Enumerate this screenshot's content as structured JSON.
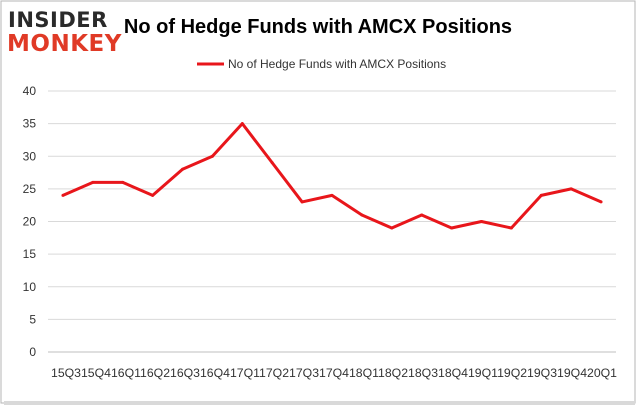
{
  "logo": {
    "line1": "INSIDER",
    "line2": "MONKEY"
  },
  "colors": {
    "series": "#e8161b",
    "logo_accent": "#e03a26",
    "border": "#b5b5b5"
  },
  "chart_data": {
    "type": "line",
    "title": "No of Hedge Funds with AMCX Positions",
    "legend": {
      "position": "top-center",
      "label": "No of Hedge Funds with AMCX Positions"
    },
    "xlabel": "",
    "ylabel": "",
    "ylim": [
      0,
      40
    ],
    "yticks": [
      0,
      5,
      10,
      15,
      20,
      25,
      30,
      35,
      40
    ],
    "grid": true,
    "x_tick_row": "15Q315Q416Q116Q216Q316Q417Q117Q217Q317Q418Q118Q218Q318Q419Q119Q219Q319Q420Q1",
    "categories": [
      "15Q3",
      "15Q4",
      "16Q1",
      "16Q2",
      "16Q3",
      "16Q4",
      "17Q1",
      "17Q2",
      "17Q3",
      "17Q4",
      "18Q1",
      "18Q2",
      "18Q3",
      "18Q4",
      "19Q1",
      "19Q2",
      "19Q3",
      "19Q4",
      "20Q1"
    ],
    "series": [
      {
        "name": "No of Hedge Funds with AMCX Positions",
        "values": [
          24,
          26,
          26,
          24,
          28,
          30,
          35,
          29,
          23,
          24,
          21,
          19,
          21,
          19,
          20,
          19,
          24,
          25,
          23
        ]
      }
    ]
  }
}
